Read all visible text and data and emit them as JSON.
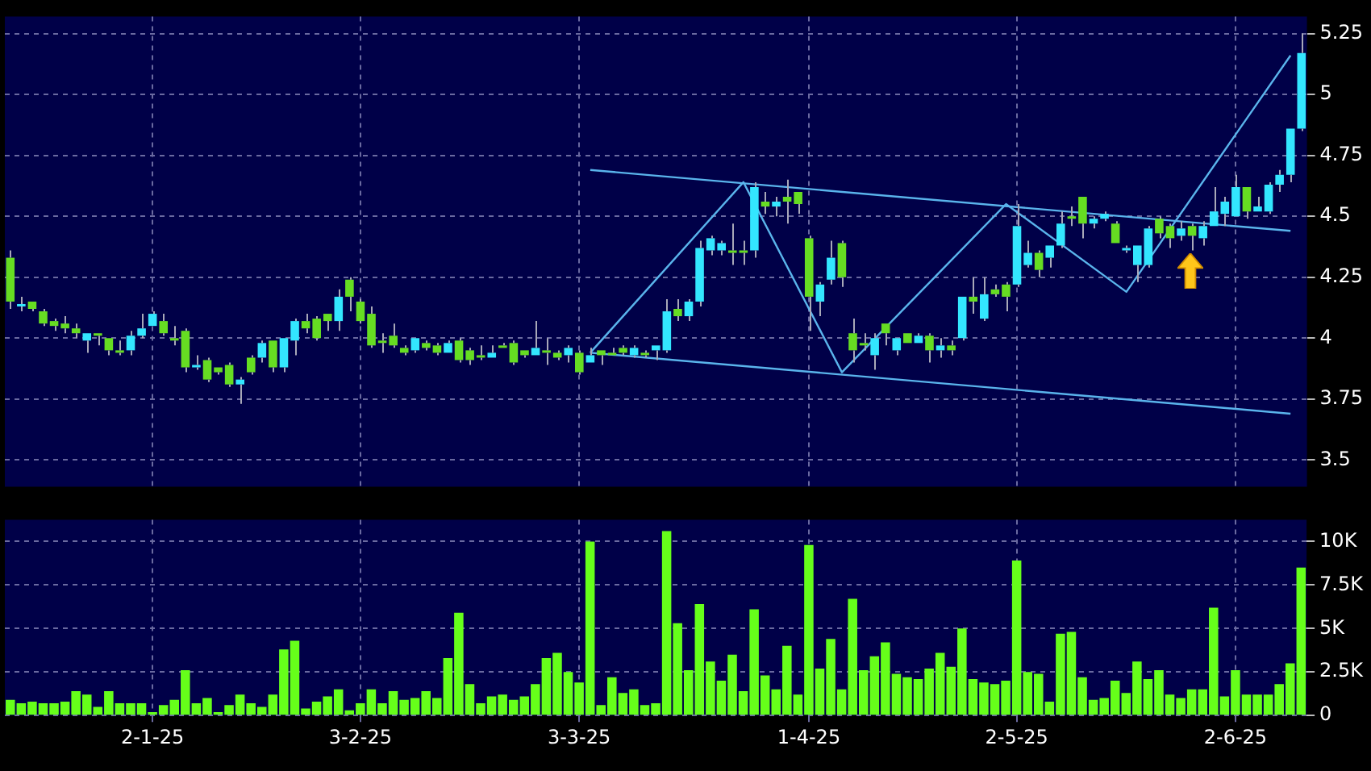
{
  "chart_data": [
    {
      "type": "candlestick",
      "categories": [
        null,
        null,
        null,
        null,
        null,
        null,
        null,
        null,
        null,
        null,
        null,
        null,
        null,
        null,
        null,
        null,
        null,
        null,
        null,
        null,
        null,
        null,
        null,
        null,
        null,
        null,
        null,
        null,
        null,
        null,
        null,
        null,
        null,
        null,
        null,
        null,
        null,
        null,
        null,
        null,
        null,
        null,
        null,
        null,
        null,
        null,
        null,
        null,
        null,
        null,
        null,
        null,
        null,
        null,
        null,
        null,
        null,
        null,
        null,
        null,
        null,
        null,
        null,
        null,
        null,
        null,
        null,
        null,
        null,
        null,
        null,
        null,
        null,
        null,
        null,
        null,
        null,
        null,
        null,
        null,
        null,
        null,
        null,
        null,
        null,
        null,
        null,
        null,
        null,
        null,
        null,
        null,
        null,
        null,
        null,
        null,
        null,
        null,
        null,
        null,
        null,
        null,
        null,
        null,
        null,
        null,
        null,
        null,
        null,
        null,
        null,
        null,
        null,
        null,
        null,
        null,
        null,
        null,
        null
      ],
      "ohlc": [
        [
          4.33,
          4.36,
          4.12,
          4.15
        ],
        [
          4.13,
          4.17,
          4.11,
          4.14
        ],
        [
          4.15,
          4.15,
          4.11,
          4.12
        ],
        [
          4.11,
          4.12,
          4.05,
          4.06
        ],
        [
          4.07,
          4.08,
          4.03,
          4.05
        ],
        [
          4.06,
          4.09,
          4.02,
          4.04
        ],
        [
          4.04,
          4.06,
          4.0,
          4.02
        ],
        [
          3.99,
          4.02,
          3.94,
          4.02
        ],
        [
          4.02,
          4.02,
          3.97,
          4.01
        ],
        [
          4.0,
          4.0,
          3.93,
          3.95
        ],
        [
          3.95,
          3.99,
          3.93,
          3.94
        ],
        [
          3.95,
          4.03,
          3.93,
          4.01
        ],
        [
          4.01,
          4.1,
          4.0,
          4.04
        ],
        [
          4.05,
          4.11,
          4.05,
          4.1
        ],
        [
          4.07,
          4.1,
          4.01,
          4.02
        ],
        [
          4.0,
          4.05,
          3.97,
          3.99
        ],
        [
          4.03,
          4.04,
          3.86,
          3.88
        ],
        [
          3.88,
          3.93,
          3.87,
          3.89
        ],
        [
          3.91,
          3.92,
          3.82,
          3.83
        ],
        [
          3.88,
          3.88,
          3.85,
          3.86
        ],
        [
          3.89,
          3.9,
          3.8,
          3.81
        ],
        [
          3.81,
          3.84,
          3.73,
          3.83
        ],
        [
          3.92,
          3.93,
          3.85,
          3.86
        ],
        [
          3.92,
          3.99,
          3.9,
          3.98
        ],
        [
          3.99,
          3.99,
          3.86,
          3.88
        ],
        [
          3.88,
          4.0,
          3.86,
          4.0
        ],
        [
          3.99,
          4.08,
          3.93,
          4.07
        ],
        [
          4.07,
          4.1,
          4.02,
          4.04
        ],
        [
          4.08,
          4.09,
          3.99,
          4.0
        ],
        [
          4.1,
          4.1,
          4.03,
          4.07
        ],
        [
          4.07,
          4.2,
          4.03,
          4.17
        ],
        [
          4.24,
          4.25,
          4.11,
          4.17
        ],
        [
          4.15,
          4.16,
          4.06,
          4.07
        ],
        [
          4.1,
          4.13,
          3.96,
          3.97
        ],
        [
          3.99,
          4.02,
          3.94,
          3.98
        ],
        [
          4.01,
          4.06,
          3.96,
          3.97
        ],
        [
          3.96,
          3.97,
          3.93,
          3.94
        ],
        [
          3.95,
          4.0,
          3.94,
          4.0
        ],
        [
          3.98,
          3.99,
          3.95,
          3.96
        ],
        [
          3.97,
          3.98,
          3.93,
          3.94
        ],
        [
          3.94,
          3.99,
          3.94,
          3.98
        ],
        [
          3.99,
          4.0,
          3.9,
          3.91
        ],
        [
          3.95,
          3.96,
          3.89,
          3.91
        ],
        [
          3.93,
          3.97,
          3.91,
          3.92
        ],
        [
          3.92,
          3.97,
          3.92,
          3.94
        ],
        [
          3.97,
          3.98,
          3.96,
          3.96
        ],
        [
          3.98,
          3.99,
          3.89,
          3.9
        ],
        [
          3.95,
          3.95,
          3.92,
          3.93
        ],
        [
          3.93,
          4.07,
          3.93,
          3.96
        ],
        [
          3.95,
          4.0,
          3.89,
          3.94
        ],
        [
          3.94,
          3.95,
          3.91,
          3.92
        ],
        [
          3.93,
          3.97,
          3.9,
          3.96
        ],
        [
          3.94,
          3.95,
          3.85,
          3.86
        ],
        [
          3.9,
          3.96,
          3.9,
          3.93
        ],
        [
          3.95,
          3.95,
          3.89,
          3.93
        ],
        [
          3.94,
          3.96,
          3.93,
          3.93
        ],
        [
          3.96,
          3.97,
          3.93,
          3.94
        ],
        [
          3.93,
          3.97,
          3.92,
          3.96
        ],
        [
          3.94,
          3.95,
          3.92,
          3.93
        ],
        [
          3.95,
          3.97,
          3.91,
          3.97
        ],
        [
          3.95,
          4.16,
          3.94,
          4.11
        ],
        [
          4.12,
          4.16,
          4.07,
          4.09
        ],
        [
          4.09,
          4.16,
          4.07,
          4.15
        ],
        [
          4.15,
          4.4,
          4.13,
          4.37
        ],
        [
          4.36,
          4.42,
          4.34,
          4.41
        ],
        [
          4.36,
          4.4,
          4.34,
          4.39
        ],
        [
          4.36,
          4.47,
          4.3,
          4.35
        ],
        [
          4.36,
          4.4,
          4.3,
          4.35
        ],
        [
          4.36,
          4.64,
          4.33,
          4.62
        ],
        [
          4.56,
          4.6,
          4.51,
          4.54
        ],
        [
          4.54,
          4.58,
          4.5,
          4.56
        ],
        [
          4.58,
          4.65,
          4.47,
          4.56
        ],
        [
          4.6,
          4.6,
          4.51,
          4.55
        ],
        [
          4.41,
          4.42,
          4.03,
          4.17
        ],
        [
          4.15,
          4.23,
          4.09,
          4.22
        ],
        [
          4.24,
          4.4,
          4.22,
          4.33
        ],
        [
          4.39,
          4.4,
          4.21,
          4.25
        ],
        [
          4.02,
          4.08,
          3.9,
          3.95
        ],
        [
          3.98,
          4.02,
          3.95,
          3.97
        ],
        [
          3.93,
          4.02,
          3.87,
          4.0
        ],
        [
          4.06,
          4.06,
          3.97,
          4.02
        ],
        [
          3.95,
          4.0,
          3.93,
          4.0
        ],
        [
          4.02,
          4.02,
          3.98,
          3.98
        ],
        [
          3.98,
          4.02,
          3.98,
          4.01
        ],
        [
          4.01,
          4.02,
          3.9,
          3.95
        ],
        [
          3.95,
          4.0,
          3.92,
          3.97
        ],
        [
          3.97,
          3.99,
          3.93,
          3.95
        ],
        [
          4.0,
          4.17,
          3.99,
          4.17
        ],
        [
          4.17,
          4.25,
          4.1,
          4.15
        ],
        [
          4.08,
          4.25,
          4.07,
          4.18
        ],
        [
          4.2,
          4.22,
          4.17,
          4.18
        ],
        [
          4.22,
          4.23,
          4.11,
          4.17
        ],
        [
          4.22,
          4.55,
          4.21,
          4.46
        ],
        [
          4.3,
          4.4,
          4.29,
          4.35
        ],
        [
          4.35,
          4.36,
          4.25,
          4.28
        ],
        [
          4.33,
          4.38,
          4.29,
          4.38
        ],
        [
          4.38,
          4.52,
          4.37,
          4.47
        ],
        [
          4.5,
          4.54,
          4.46,
          4.49
        ],
        [
          4.58,
          4.58,
          4.41,
          4.47
        ],
        [
          4.47,
          4.5,
          4.45,
          4.49
        ],
        [
          4.49,
          4.52,
          4.48,
          4.51
        ],
        [
          4.47,
          4.48,
          4.39,
          4.39
        ],
        [
          4.36,
          4.38,
          4.35,
          4.37
        ],
        [
          4.3,
          4.38,
          4.23,
          4.38
        ],
        [
          4.3,
          4.46,
          4.29,
          4.45
        ],
        [
          4.49,
          4.5,
          4.41,
          4.43
        ],
        [
          4.46,
          4.47,
          4.37,
          4.41
        ],
        [
          4.42,
          4.48,
          4.4,
          4.45
        ],
        [
          4.46,
          4.47,
          4.36,
          4.42
        ],
        [
          4.41,
          4.48,
          4.38,
          4.46
        ],
        [
          4.46,
          4.62,
          4.46,
          4.52
        ],
        [
          4.51,
          4.58,
          4.46,
          4.56
        ],
        [
          4.5,
          4.67,
          4.5,
          4.62
        ],
        [
          4.62,
          4.62,
          4.49,
          4.52
        ],
        [
          4.52,
          4.58,
          4.52,
          4.54
        ],
        [
          4.52,
          4.64,
          4.51,
          4.63
        ],
        [
          4.63,
          4.69,
          4.6,
          4.67
        ],
        [
          4.67,
          4.86,
          4.64,
          4.86
        ],
        [
          4.86,
          5.25,
          4.85,
          5.17
        ]
      ],
      "colors": [
        "#66dd22",
        "#33e6ff",
        "#66dd22",
        "#66dd22",
        "#66dd22",
        "#66dd22",
        "#66dd22",
        "#33e6ff",
        "#66dd22",
        "#66dd22",
        "#66dd22",
        "#33e6ff",
        "#33e6ff",
        "#33e6ff",
        "#66dd22",
        "#66dd22",
        "#66dd22",
        "#33e6ff",
        "#66dd22",
        "#66dd22",
        "#66dd22",
        "#33e6ff",
        "#66dd22",
        "#33e6ff",
        "#66dd22",
        "#33e6ff",
        "#33e6ff",
        "#66dd22",
        "#66dd22",
        "#66dd22",
        "#33e6ff",
        "#66dd22",
        "#66dd22",
        "#66dd22",
        "#66dd22",
        "#66dd22",
        "#66dd22",
        "#33e6ff",
        "#66dd22",
        "#66dd22",
        "#33e6ff",
        "#66dd22",
        "#66dd22",
        "#66dd22",
        "#33e6ff",
        "#66dd22",
        "#66dd22",
        "#66dd22",
        "#33e6ff",
        "#66dd22",
        "#66dd22",
        "#33e6ff",
        "#66dd22",
        "#33e6ff",
        "#66dd22",
        "#66dd22",
        "#66dd22",
        "#33e6ff",
        "#66dd22",
        "#33e6ff",
        "#33e6ff",
        "#66dd22",
        "#33e6ff",
        "#33e6ff",
        "#33e6ff",
        "#33e6ff",
        "#66dd22",
        "#66dd22",
        "#33e6ff",
        "#66dd22",
        "#33e6ff",
        "#66dd22",
        "#66dd22",
        "#66dd22",
        "#33e6ff",
        "#33e6ff",
        "#66dd22",
        "#66dd22",
        "#66dd22",
        "#33e6ff",
        "#66dd22",
        "#33e6ff",
        "#66dd22",
        "#33e6ff",
        "#66dd22",
        "#33e6ff",
        "#66dd22",
        "#33e6ff",
        "#66dd22",
        "#33e6ff",
        "#66dd22",
        "#66dd22",
        "#33e6ff",
        "#33e6ff",
        "#66dd22",
        "#33e6ff",
        "#33e6ff",
        "#66dd22",
        "#66dd22",
        "#33e6ff",
        "#33e6ff",
        "#66dd22",
        "#33e6ff",
        "#33e6ff",
        "#33e6ff",
        "#66dd22",
        "#66dd22",
        "#33e6ff",
        "#66dd22",
        "#33e6ff",
        "#33e6ff",
        "#33e6ff",
        "#33e6ff",
        "#66dd22",
        "#33e6ff",
        "#33e6ff",
        "#33e6ff",
        "#33e6ff",
        "#33e6ff"
      ],
      "series": [
        {
          "type": "line",
          "color": "#5ab4ec",
          "values": [
            null,
            null,
            null,
            null,
            null,
            null,
            null,
            null,
            null,
            null,
            null,
            null,
            null,
            null,
            null,
            null,
            null,
            null,
            null,
            null,
            null,
            null,
            null,
            null,
            null,
            null,
            null,
            null,
            null,
            null,
            null,
            null,
            null,
            null,
            null,
            null,
            null,
            null,
            null,
            null,
            null,
            null,
            null,
            null,
            null,
            null,
            null,
            null,
            null,
            null,
            null,
            null,
            null,
            4.69,
            null,
            null,
            null,
            null,
            null,
            null,
            null,
            null,
            null,
            null,
            null,
            null,
            null,
            null,
            null,
            null,
            null,
            null,
            null,
            null,
            null,
            null,
            null,
            null,
            null,
            null,
            null,
            null,
            null,
            null,
            null,
            null,
            null,
            null,
            null,
            null,
            null,
            null,
            null,
            null,
            null,
            null,
            null,
            null,
            null,
            null,
            null,
            null,
            null,
            null,
            null,
            null,
            null,
            null,
            null,
            null,
            null,
            null,
            null,
            null,
            null,
            null,
            null,
            4.44,
            null
          ]
        },
        {
          "type": "line",
          "color": "#5ab4ec",
          "values": [
            null,
            null,
            null,
            null,
            null,
            null,
            null,
            null,
            null,
            null,
            null,
            null,
            null,
            null,
            null,
            null,
            null,
            null,
            null,
            null,
            null,
            null,
            null,
            null,
            null,
            null,
            null,
            null,
            null,
            null,
            null,
            null,
            null,
            null,
            null,
            null,
            null,
            null,
            null,
            null,
            null,
            null,
            null,
            null,
            null,
            null,
            null,
            null,
            null,
            null,
            null,
            null,
            null,
            3.94,
            null,
            null,
            null,
            null,
            null,
            null,
            null,
            null,
            null,
            null,
            null,
            null,
            null,
            null,
            null,
            null,
            null,
            null,
            null,
            null,
            null,
            null,
            null,
            null,
            null,
            null,
            null,
            null,
            null,
            null,
            null,
            null,
            null,
            null,
            null,
            null,
            null,
            null,
            null,
            null,
            null,
            null,
            null,
            null,
            null,
            null,
            null,
            null,
            null,
            null,
            null,
            null,
            null,
            null,
            null,
            null,
            null,
            null,
            null,
            null,
            null,
            null,
            null,
            3.69,
            null
          ]
        },
        {
          "type": "line",
          "color": "#5ab4ec",
          "values": [
            null,
            null,
            null,
            null,
            null,
            null,
            null,
            null,
            null,
            null,
            null,
            null,
            null,
            null,
            null,
            null,
            null,
            null,
            null,
            null,
            null,
            null,
            null,
            null,
            null,
            null,
            null,
            null,
            null,
            null,
            null,
            null,
            null,
            null,
            null,
            null,
            null,
            null,
            null,
            null,
            null,
            null,
            null,
            null,
            null,
            null,
            null,
            null,
            null,
            null,
            null,
            null,
            null,
            3.94,
            null,
            null,
            null,
            null,
            null,
            null,
            null,
            null,
            null,
            null,
            null,
            null,
            null,
            4.64,
            null,
            null,
            null,
            null,
            null,
            null,
            null,
            null,
            3.86,
            null,
            null,
            null,
            null,
            null,
            null,
            null,
            null,
            null,
            null,
            null,
            null,
            null,
            null,
            4.55,
            null,
            null,
            null,
            null,
            null,
            null,
            null,
            null,
            null,
            null,
            4.19,
            null,
            null,
            null,
            null,
            null,
            null,
            null,
            null,
            null,
            null,
            null,
            null,
            null,
            null,
            5.16,
            null
          ]
        }
      ],
      "ylim": [
        3.39,
        5.32
      ],
      "yticks": [
        3.5,
        3.75,
        4,
        4.25,
        4.5,
        4.75,
        5,
        5.25
      ],
      "grid": true,
      "tick_labels": "y"
    },
    {
      "type": "bar",
      "categories": [
        null,
        null,
        null,
        null,
        null,
        null,
        null,
        null,
        null,
        null,
        null,
        null,
        null,
        "2-1-25",
        null,
        null,
        null,
        null,
        null,
        null,
        null,
        null,
        null,
        null,
        null,
        null,
        null,
        null,
        null,
        null,
        null,
        null,
        "3-2-25",
        null,
        null,
        null,
        null,
        null,
        null,
        null,
        null,
        null,
        null,
        null,
        null,
        null,
        null,
        null,
        null,
        null,
        null,
        null,
        "3-3-25",
        null,
        null,
        null,
        null,
        null,
        null,
        null,
        null,
        null,
        null,
        null,
        null,
        null,
        null,
        null,
        null,
        null,
        null,
        null,
        null,
        "1-4-25",
        null,
        null,
        null,
        null,
        null,
        null,
        null,
        null,
        null,
        null,
        null,
        null,
        null,
        null,
        null,
        null,
        null,
        null,
        "2-5-25",
        null,
        null,
        null,
        null,
        null,
        null,
        null,
        null,
        null,
        null,
        null,
        null,
        null,
        null,
        null,
        null,
        null,
        null,
        null,
        "2-6-25",
        null,
        null,
        null,
        null,
        null,
        null
      ],
      "values": [
        900,
        700,
        800,
        700,
        700,
        800,
        1400,
        1200,
        500,
        1400,
        700,
        700,
        700,
        200,
        600,
        900,
        2600,
        700,
        1000,
        200,
        600,
        1200,
        700,
        500,
        1200,
        3800,
        4300,
        400,
        800,
        1100,
        1500,
        300,
        700,
        1500,
        700,
        1400,
        900,
        1000,
        1400,
        1000,
        3300,
        5900,
        1800,
        700,
        1100,
        1200,
        900,
        1100,
        1800,
        3300,
        3600,
        2500,
        1900,
        10000,
        600,
        2200,
        1300,
        1500,
        600,
        700,
        10600,
        5300,
        2600,
        6400,
        3100,
        2000,
        3500,
        1400,
        6100,
        2300,
        1500,
        4000,
        1200,
        9800,
        2700,
        4400,
        1500,
        6700,
        2600,
        3400,
        4200,
        2400,
        2200,
        2100,
        2700,
        3600,
        2800,
        5000,
        2100,
        1900,
        1800,
        2000,
        8900,
        2500,
        2400,
        800,
        4700,
        4800,
        2200,
        900,
        1000,
        2000,
        1300,
        3100,
        2100,
        2600,
        1200,
        1000,
        1500,
        1500,
        6200,
        1100,
        2600,
        1200,
        1200,
        1200,
        1800,
        3000,
        8500
      ],
      "color": "#66ff1a",
      "ylim": [
        0,
        11250
      ],
      "yticks": [
        0,
        {
          "value": 2500,
          "label": "2.5K"
        },
        {
          "value": 5000,
          "label": "5K"
        },
        {
          "value": 7500,
          "label": "7.5K"
        },
        {
          "value": 10000,
          "label": "10K"
        }
      ],
      "grid": true
    }
  ]
}
